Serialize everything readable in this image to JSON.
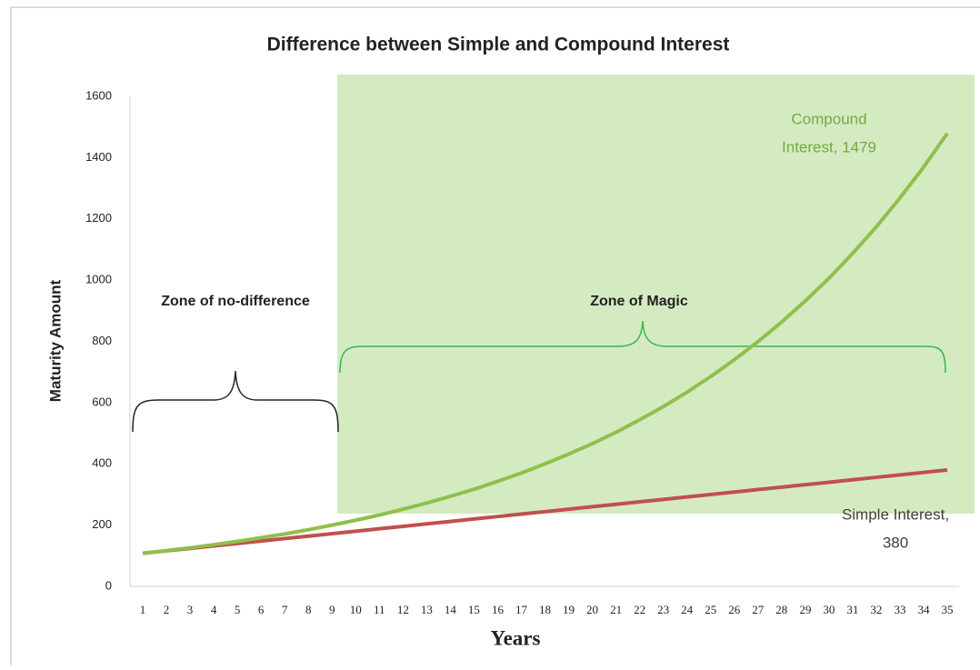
{
  "chart_data": {
    "type": "line",
    "title": "Difference between Simple and Compound Interest",
    "x_label": "Years",
    "y_label": "Maturity Amount",
    "categories": [
      "1",
      "2",
      "3",
      "4",
      "5",
      "6",
      "7",
      "8",
      "9",
      "10",
      "11",
      "12",
      "13",
      "14",
      "15",
      "16",
      "17",
      "18",
      "19",
      "20",
      "21",
      "22",
      "23",
      "24",
      "25",
      "26",
      "27",
      "28",
      "29",
      "30",
      "31",
      "32",
      "33",
      "34",
      "35"
    ],
    "series": [
      {
        "name": "Compound Interest",
        "color": "#8fc04c",
        "values": [
          108,
          117,
          126,
          136,
          147,
          159,
          171,
          185,
          200,
          216,
          233,
          252,
          272,
          294,
          317,
          343,
          370,
          400,
          432,
          466,
          503,
          544,
          587,
          634,
          685,
          740,
          799,
          863,
          932,
          1006,
          1087,
          1174,
          1268,
          1369,
          1479
        ]
      },
      {
        "name": "Simple Interest",
        "color": "#c0504d",
        "values": [
          108,
          116,
          124,
          132,
          140,
          148,
          156,
          164,
          172,
          180,
          188,
          196,
          204,
          212,
          220,
          228,
          236,
          244,
          252,
          260,
          268,
          276,
          284,
          292,
          300,
          308,
          316,
          324,
          332,
          340,
          348,
          356,
          364,
          372,
          380
        ]
      }
    ],
    "data_labels": [
      {
        "lines": [
          "Compound",
          "Interest, 1479"
        ],
        "color": "#76a845"
      },
      {
        "lines": [
          "Simple Interest,",
          "380"
        ],
        "color": "#404040"
      }
    ],
    "annotations": [
      {
        "text": "Zone of no-difference"
      },
      {
        "text": "Zone of Magic"
      }
    ],
    "ylim": [
      0,
      1600
    ],
    "yticks": [
      0,
      200,
      400,
      600,
      800,
      1000,
      1200,
      1400,
      1600
    ],
    "grid": false
  }
}
